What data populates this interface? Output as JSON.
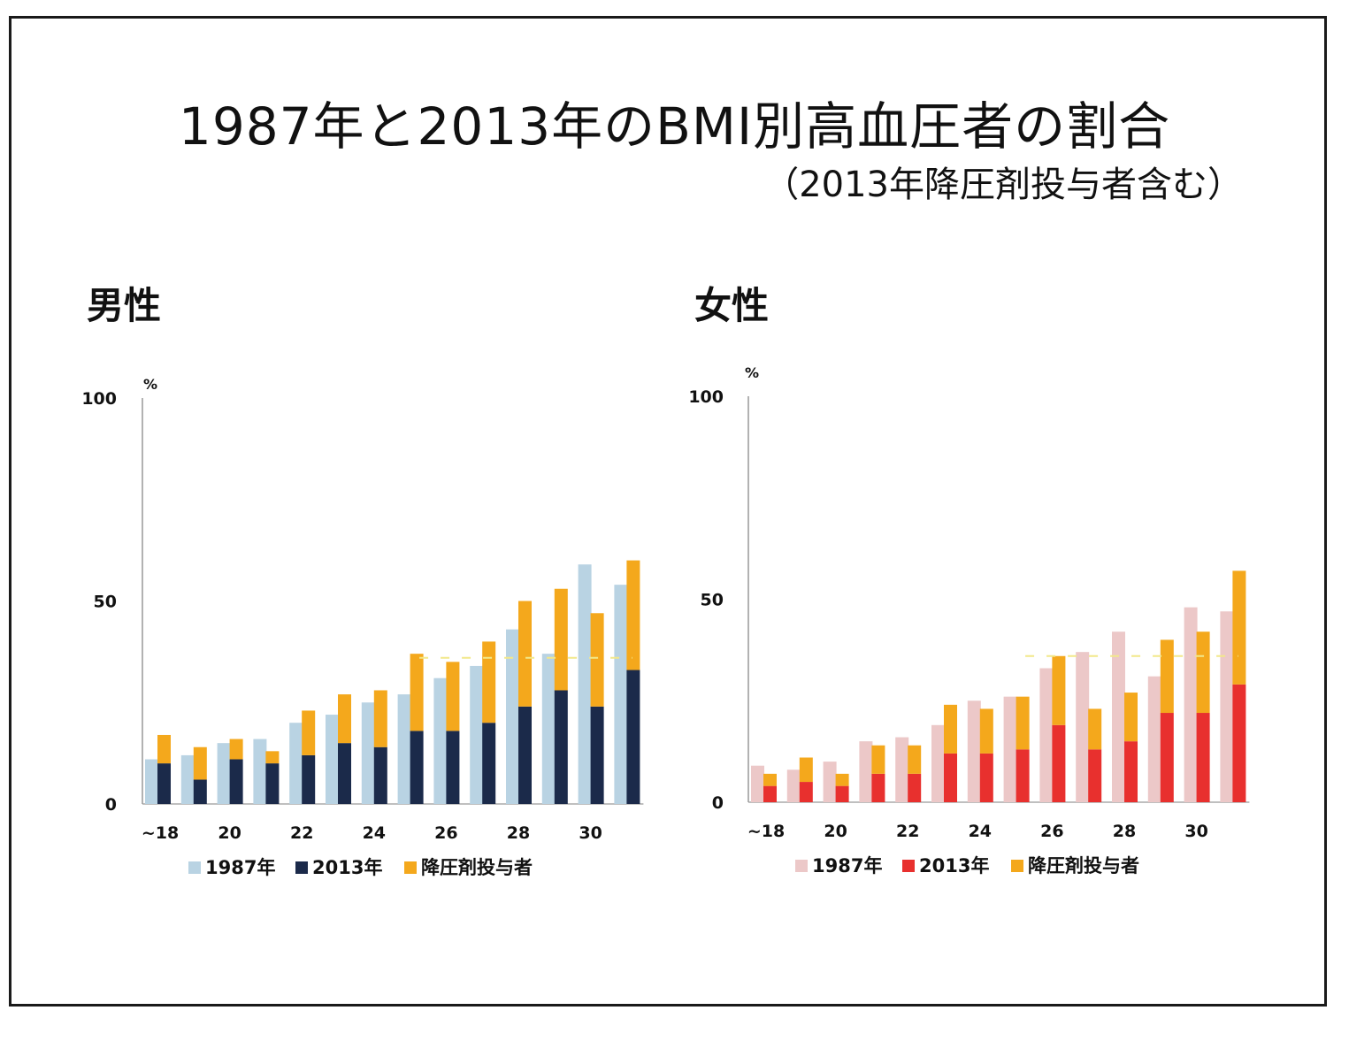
{
  "title": "1987年と2013年のBMI別高血圧者の割合",
  "subtitle": "（2013年降圧剤投与者含む）",
  "colors": {
    "male_1987": "#b9d3e3",
    "male_2013": "#1b2a4a",
    "treated": "#f4a81c",
    "female_1987": "#ecc8c8",
    "female_2013": "#e8302e",
    "axis": "#999999",
    "reference": "#f2e88a"
  },
  "chart_data": [
    {
      "type": "bar",
      "panel_title": "男性",
      "ylabel_unit": "%",
      "ylim": [
        0,
        100
      ],
      "yticks": [
        "0",
        "50",
        "100"
      ],
      "xticks": [
        "~18",
        "20",
        "22",
        "24",
        "26",
        "28",
        "30"
      ],
      "categories": [
        "~18",
        "19",
        "20",
        "21",
        "22",
        "23",
        "24",
        "25",
        "26",
        "27",
        "28",
        "29",
        "30",
        "31"
      ],
      "series": [
        {
          "name": "1987年",
          "values": [
            11,
            12,
            15,
            16,
            20,
            22,
            25,
            27,
            31,
            34,
            43,
            37,
            59,
            54
          ]
        },
        {
          "name": "2013年",
          "values": [
            10,
            6,
            11,
            10,
            12,
            15,
            14,
            18,
            18,
            20,
            24,
            28,
            24,
            33
          ]
        },
        {
          "name": "降圧剤投与者",
          "values": [
            7,
            8,
            5,
            3,
            11,
            12,
            14,
            19,
            17,
            20,
            26,
            25,
            23,
            27
          ]
        }
      ],
      "reference_line": 36,
      "legend": [
        "1987年",
        "2013年",
        "降圧剤投与者"
      ]
    },
    {
      "type": "bar",
      "panel_title": "女性",
      "ylabel_unit": "%",
      "ylim": [
        0,
        100
      ],
      "yticks": [
        "0",
        "50",
        "100"
      ],
      "xticks": [
        "~18",
        "20",
        "22",
        "24",
        "26",
        "28",
        "30"
      ],
      "categories": [
        "~18",
        "19",
        "20",
        "21",
        "22",
        "23",
        "24",
        "25",
        "26",
        "27",
        "28",
        "29",
        "30",
        "31"
      ],
      "series": [
        {
          "name": "1987年",
          "values": [
            9,
            8,
            10,
            15,
            16,
            19,
            25,
            26,
            33,
            37,
            42,
            31,
            48,
            47
          ]
        },
        {
          "name": "2013年",
          "values": [
            4,
            5,
            4,
            7,
            7,
            12,
            12,
            13,
            19,
            13,
            15,
            22,
            22,
            29
          ]
        },
        {
          "name": "降圧剤投与者",
          "values": [
            3,
            6,
            3,
            7,
            7,
            12,
            11,
            13,
            17,
            10,
            12,
            18,
            20,
            28
          ]
        }
      ],
      "reference_line": 36,
      "legend": [
        "1987年",
        "2013年",
        "降圧剤投与者"
      ]
    }
  ]
}
